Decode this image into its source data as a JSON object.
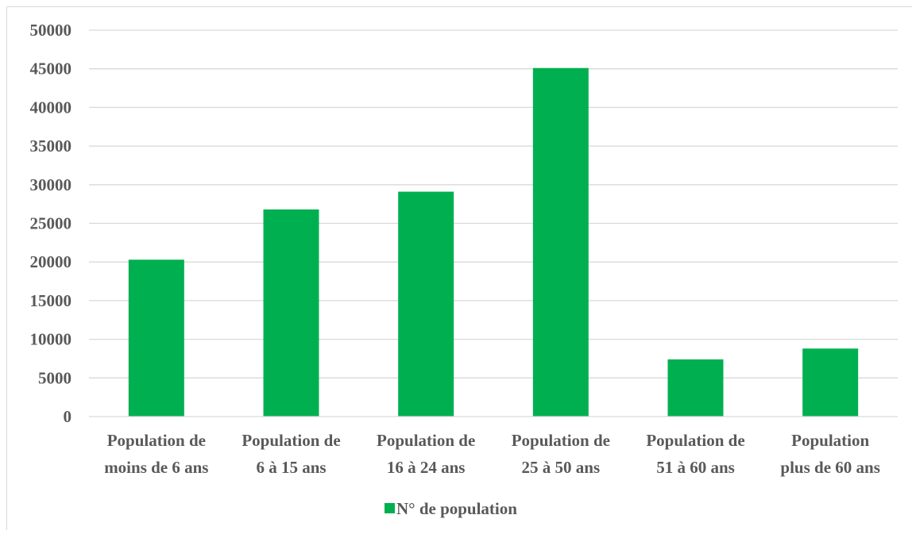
{
  "chart_data": {
    "type": "bar",
    "categories": [
      [
        "Population de",
        "moins de 6 ans"
      ],
      [
        "Population de",
        "6 à 15 ans"
      ],
      [
        "Population de",
        "16 à 24 ans"
      ],
      [
        "Population de",
        "25 à 50 ans"
      ],
      [
        "Population de",
        "51 à 60 ans"
      ],
      [
        "Population",
        "plus de 60 ans"
      ]
    ],
    "series": [
      {
        "name": "N° de population",
        "values": [
          20300,
          26800,
          29100,
          45100,
          7400,
          8800
        ]
      }
    ],
    "ylim": [
      0,
      50000
    ],
    "yticks": [
      0,
      5000,
      10000,
      15000,
      20000,
      25000,
      30000,
      35000,
      40000,
      45000,
      50000
    ],
    "grid": true,
    "legend_position": "bottom",
    "colors": {
      "bar": "#00b050",
      "grid": "#d9d9d9",
      "text": "#595959"
    }
  }
}
